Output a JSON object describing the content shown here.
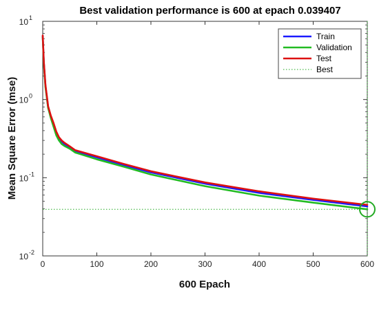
{
  "chart_data": {
    "type": "line",
    "title": "Best validation performance is 600 at epach 0.039407",
    "xlabel": "600 Epach",
    "ylabel": "Mean Square Error (mse)",
    "xlim": [
      0,
      600
    ],
    "ylim": [
      0.01,
      10
    ],
    "yscale": "log",
    "x_ticks": [
      0,
      100,
      200,
      300,
      400,
      500,
      600
    ],
    "y_ticks": [
      {
        "value": 0.01,
        "base": "10",
        "exp": "-2"
      },
      {
        "value": 0.1,
        "base": "10",
        "exp": "-1"
      },
      {
        "value": 1,
        "base": "10",
        "exp": "0"
      },
      {
        "value": 10,
        "base": "10",
        "exp": "1"
      }
    ],
    "grid": false,
    "legend_position": "top-right",
    "series": [
      {
        "name": "Train",
        "color": "#1a1aff",
        "x": [
          0,
          2,
          5,
          10,
          15,
          20,
          25,
          30,
          35,
          40,
          50,
          60,
          70,
          100,
          150,
          200,
          300,
          400,
          500,
          600
        ],
        "y": [
          6.5,
          3.0,
          1.5,
          0.8,
          0.6,
          0.48,
          0.38,
          0.32,
          0.29,
          0.27,
          0.245,
          0.22,
          0.21,
          0.182,
          0.145,
          0.117,
          0.084,
          0.064,
          0.052,
          0.043
        ]
      },
      {
        "name": "Validation",
        "color": "#22bb22",
        "x": [
          0,
          2,
          5,
          10,
          15,
          20,
          25,
          30,
          35,
          40,
          50,
          60,
          70,
          100,
          150,
          200,
          300,
          400,
          500,
          600
        ],
        "y": [
          6.3,
          2.9,
          1.45,
          0.78,
          0.58,
          0.45,
          0.35,
          0.3,
          0.27,
          0.255,
          0.235,
          0.21,
          0.2,
          0.172,
          0.138,
          0.11,
          0.078,
          0.059,
          0.048,
          0.039407
        ]
      },
      {
        "name": "Test",
        "color": "#dd1111",
        "x": [
          0,
          2,
          5,
          10,
          15,
          20,
          25,
          30,
          35,
          40,
          50,
          60,
          70,
          100,
          150,
          200,
          300,
          400,
          500,
          600
        ],
        "y": [
          6.6,
          3.1,
          1.55,
          0.82,
          0.62,
          0.5,
          0.39,
          0.33,
          0.3,
          0.28,
          0.252,
          0.225,
          0.215,
          0.188,
          0.15,
          0.121,
          0.087,
          0.067,
          0.054,
          0.045
        ]
      }
    ],
    "best": {
      "name": "Best",
      "color": "#22aa22",
      "epoch": 600,
      "value": 0.039407
    }
  }
}
